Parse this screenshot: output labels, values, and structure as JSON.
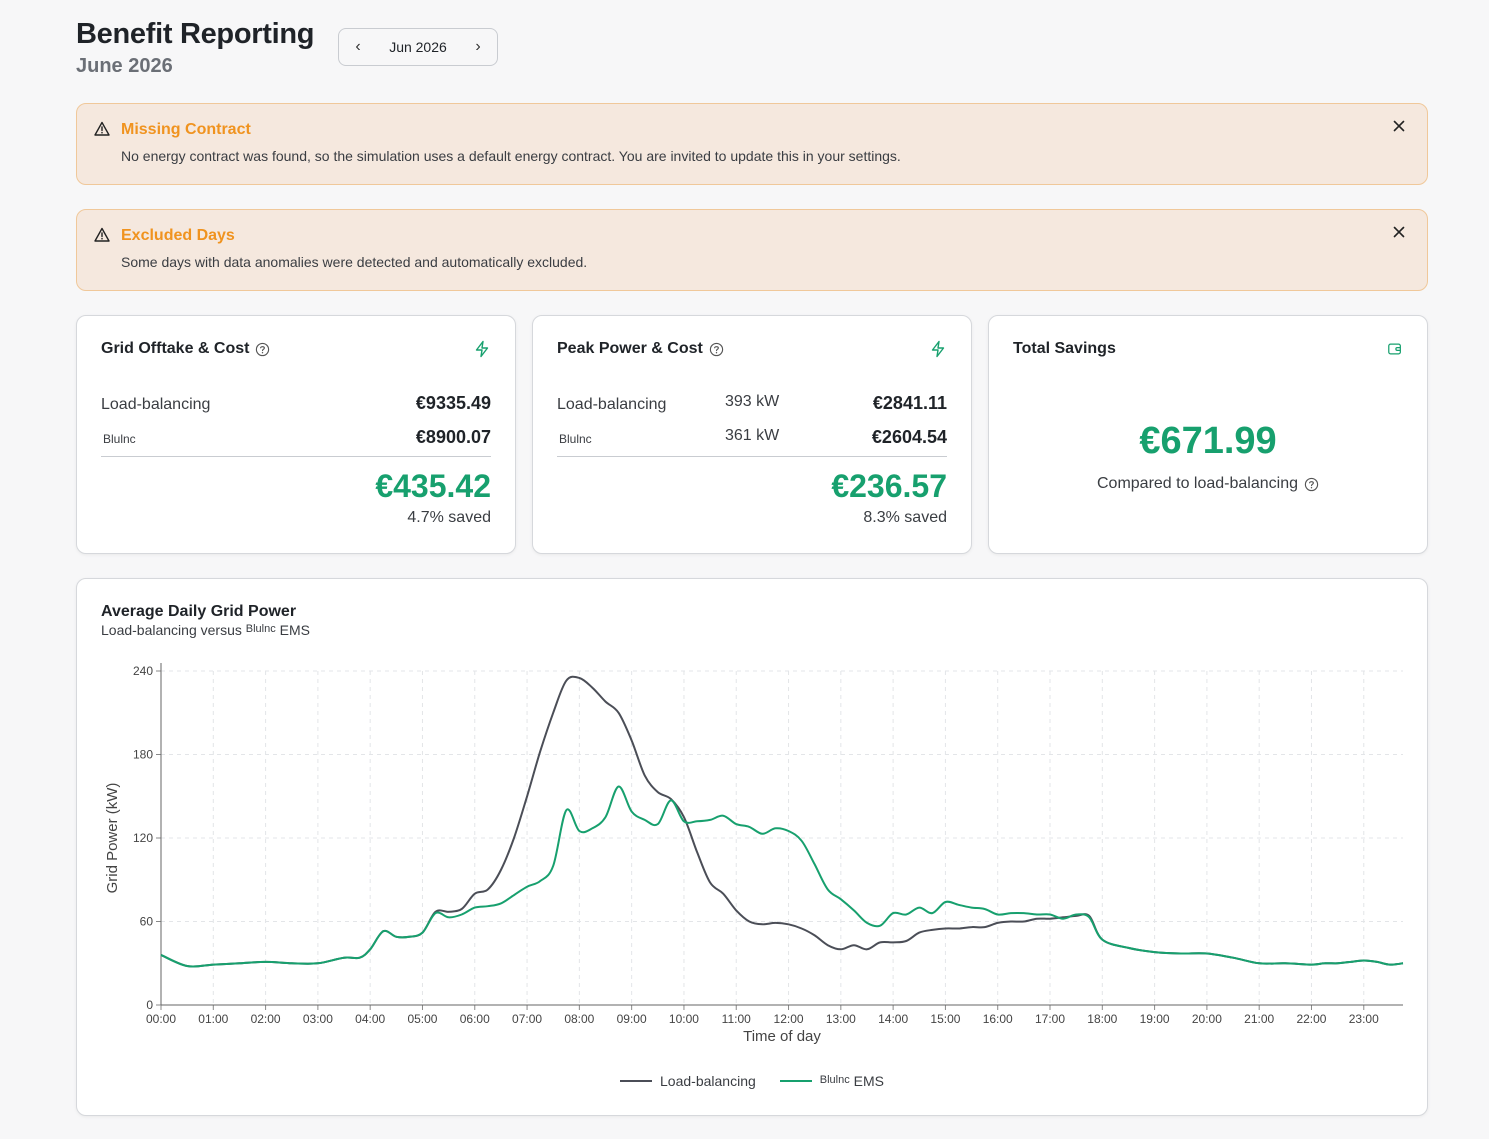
{
  "header": {
    "title": "Benefit Reporting",
    "subtitle": "June 2026",
    "month_picker": {
      "label": "Jun 2026",
      "prev": "‹",
      "next": "›"
    }
  },
  "alerts": [
    {
      "title": "Missing Contract",
      "text": "No energy contract was found, so the simulation uses a default energy contract. You are invited to update this in your settings."
    },
    {
      "title": "Excluded Days",
      "text": "Some days with data anomalies were detected and automatically excluded."
    }
  ],
  "cards": {
    "grid_offtake": {
      "title": "Grid Offtake & Cost",
      "rows": [
        {
          "label": "Load-balancing",
          "value": "€9335.49"
        },
        {
          "label": "Blulnc",
          "value": "€8900.07"
        }
      ],
      "saving": "€435.42",
      "saving_pct": "4.7% saved"
    },
    "peak_power": {
      "title": "Peak Power & Cost",
      "rows": [
        {
          "label": "Load-balancing",
          "kw": "393 kW",
          "value": "€2841.11"
        },
        {
          "label": "Blulnc",
          "kw": "361 kW",
          "value": "€2604.54"
        }
      ],
      "saving": "€236.57",
      "saving_pct": "8.3% saved"
    },
    "total_savings": {
      "title": "Total Savings",
      "amount": "€671.99",
      "subtitle": "Compared to load-balancing"
    }
  },
  "colors": {
    "accent_green": "#17a06e",
    "load_balancing": "#4b4e57",
    "ems": "#17a06e",
    "warning": "#f0931f"
  },
  "chart_card": {
    "title": "Average Daily Grid Power",
    "subtitle_prefix": "Load-balancing versus",
    "subtitle_brand": "Blulnc",
    "subtitle_suffix": "EMS"
  },
  "chart_data": {
    "type": "line",
    "title": "Average Daily Grid Power",
    "xlabel": "Time of day",
    "ylabel": "Grid Power (kW)",
    "ylim": [
      0,
      240
    ],
    "yticks": [
      0,
      60,
      120,
      180,
      240
    ],
    "xticks": [
      "00:00",
      "01:00",
      "02:00",
      "03:00",
      "04:00",
      "05:00",
      "06:00",
      "07:00",
      "08:00",
      "09:00",
      "10:00",
      "11:00",
      "12:00",
      "13:00",
      "14:00",
      "15:00",
      "16:00",
      "17:00",
      "18:00",
      "19:00",
      "20:00",
      "21:00",
      "22:00",
      "23:00"
    ],
    "x_range_hours": [
      0,
      23.75
    ],
    "grid": true,
    "legend_position": "bottom-center",
    "series": [
      {
        "name": "Load-balancing",
        "color": "#4b4e57",
        "points": [
          [
            0,
            36
          ],
          [
            0.5,
            28
          ],
          [
            1,
            29
          ],
          [
            1.5,
            30
          ],
          [
            2,
            31
          ],
          [
            2.5,
            30
          ],
          [
            3,
            30
          ],
          [
            3.5,
            34
          ],
          [
            3.8,
            34
          ],
          [
            4,
            40
          ],
          [
            4.25,
            53
          ],
          [
            4.5,
            49
          ],
          [
            4.75,
            49
          ],
          [
            5,
            52
          ],
          [
            5.25,
            67
          ],
          [
            5.5,
            67
          ],
          [
            5.75,
            69
          ],
          [
            6,
            80
          ],
          [
            6.25,
            83
          ],
          [
            6.5,
            97
          ],
          [
            6.75,
            120
          ],
          [
            7,
            150
          ],
          [
            7.25,
            182
          ],
          [
            7.5,
            210
          ],
          [
            7.75,
            233
          ],
          [
            8,
            235
          ],
          [
            8.25,
            228
          ],
          [
            8.5,
            218
          ],
          [
            8.75,
            210
          ],
          [
            9,
            190
          ],
          [
            9.25,
            165
          ],
          [
            9.5,
            153
          ],
          [
            9.75,
            148
          ],
          [
            10,
            135
          ],
          [
            10.25,
            110
          ],
          [
            10.5,
            88
          ],
          [
            10.75,
            80
          ],
          [
            11,
            68
          ],
          [
            11.25,
            60
          ],
          [
            11.5,
            58
          ],
          [
            11.75,
            59
          ],
          [
            12,
            58
          ],
          [
            12.25,
            55
          ],
          [
            12.5,
            50
          ],
          [
            12.75,
            43
          ],
          [
            13,
            40
          ],
          [
            13.25,
            43
          ],
          [
            13.5,
            40
          ],
          [
            13.75,
            45
          ],
          [
            14,
            45
          ],
          [
            14.25,
            46
          ],
          [
            14.5,
            52
          ],
          [
            14.75,
            54
          ],
          [
            15,
            55
          ],
          [
            15.25,
            55
          ],
          [
            15.5,
            56
          ],
          [
            15.75,
            56
          ],
          [
            16,
            59
          ],
          [
            16.25,
            60
          ],
          [
            16.5,
            60
          ],
          [
            16.75,
            62
          ],
          [
            17,
            62
          ],
          [
            17.25,
            63
          ],
          [
            17.5,
            64
          ],
          [
            17.75,
            64
          ],
          [
            18,
            47
          ],
          [
            18.5,
            41
          ],
          [
            19,
            38
          ],
          [
            19.5,
            37
          ],
          [
            20,
            37
          ],
          [
            20.5,
            34
          ],
          [
            21,
            30
          ],
          [
            21.5,
            30
          ],
          [
            22,
            29
          ],
          [
            22.25,
            30
          ],
          [
            22.5,
            30
          ],
          [
            22.75,
            31
          ],
          [
            23,
            32
          ],
          [
            23.25,
            31
          ],
          [
            23.5,
            29
          ],
          [
            23.75,
            30
          ]
        ]
      },
      {
        "name": "Blulnc EMS",
        "color": "#17a06e",
        "points": [
          [
            0,
            36
          ],
          [
            0.5,
            28
          ],
          [
            1,
            29
          ],
          [
            1.5,
            30
          ],
          [
            2,
            31
          ],
          [
            2.5,
            30
          ],
          [
            3,
            30
          ],
          [
            3.5,
            34
          ],
          [
            3.8,
            34
          ],
          [
            4,
            40
          ],
          [
            4.25,
            53
          ],
          [
            4.5,
            49
          ],
          [
            4.75,
            49
          ],
          [
            5,
            52
          ],
          [
            5.25,
            66
          ],
          [
            5.5,
            63
          ],
          [
            5.75,
            65
          ],
          [
            6,
            70
          ],
          [
            6.25,
            71
          ],
          [
            6.5,
            73
          ],
          [
            6.75,
            79
          ],
          [
            7,
            85
          ],
          [
            7.25,
            89
          ],
          [
            7.5,
            100
          ],
          [
            7.75,
            140
          ],
          [
            8,
            125
          ],
          [
            8.25,
            127
          ],
          [
            8.5,
            135
          ],
          [
            8.75,
            157
          ],
          [
            9,
            139
          ],
          [
            9.25,
            133
          ],
          [
            9.5,
            130
          ],
          [
            9.75,
            147
          ],
          [
            10,
            132
          ],
          [
            10.25,
            132
          ],
          [
            10.5,
            133
          ],
          [
            10.75,
            136
          ],
          [
            11,
            130
          ],
          [
            11.25,
            128
          ],
          [
            11.5,
            123
          ],
          [
            11.75,
            127
          ],
          [
            12,
            125
          ],
          [
            12.25,
            118
          ],
          [
            12.5,
            101
          ],
          [
            12.75,
            83
          ],
          [
            13,
            76
          ],
          [
            13.25,
            68
          ],
          [
            13.5,
            59
          ],
          [
            13.75,
            57
          ],
          [
            14,
            66
          ],
          [
            14.25,
            65
          ],
          [
            14.5,
            70
          ],
          [
            14.75,
            66
          ],
          [
            15,
            74
          ],
          [
            15.25,
            72
          ],
          [
            15.5,
            70
          ],
          [
            15.75,
            69
          ],
          [
            16,
            65
          ],
          [
            16.25,
            66
          ],
          [
            16.5,
            66
          ],
          [
            16.75,
            65
          ],
          [
            17,
            65
          ],
          [
            17.25,
            62
          ],
          [
            17.5,
            65
          ],
          [
            17.75,
            63
          ],
          [
            18,
            47
          ],
          [
            18.5,
            41
          ],
          [
            19,
            38
          ],
          [
            19.5,
            37
          ],
          [
            20,
            37
          ],
          [
            20.5,
            34
          ],
          [
            21,
            30
          ],
          [
            21.5,
            30
          ],
          [
            22,
            29
          ],
          [
            22.25,
            30
          ],
          [
            22.5,
            30
          ],
          [
            22.75,
            31
          ],
          [
            23,
            32
          ],
          [
            23.25,
            31
          ],
          [
            23.5,
            29
          ],
          [
            23.75,
            30
          ]
        ]
      }
    ]
  },
  "legend": {
    "items": [
      {
        "label": "Load-balancing"
      },
      {
        "brand": "Blulnc",
        "label": "EMS"
      }
    ]
  }
}
